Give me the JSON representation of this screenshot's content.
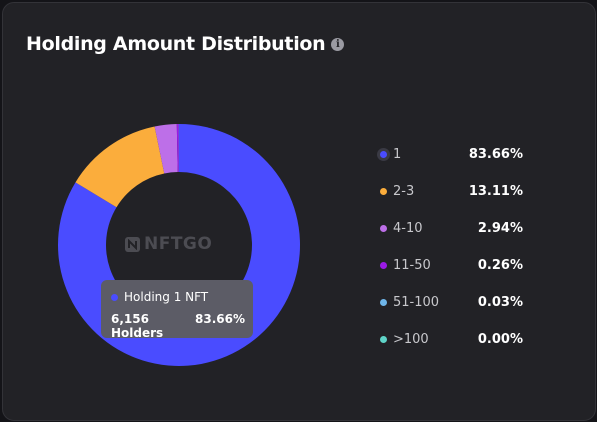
{
  "card": {
    "title": "Holding Amount Distribution",
    "info_icon": "info-icon",
    "info_glyph": "i"
  },
  "watermark": {
    "text": "NFTGO"
  },
  "tooltip": {
    "title": "Holding 1 NFT",
    "holders": "6,156 Holders",
    "percent": "83.66%",
    "color": "#4a4cff"
  },
  "chart_data": {
    "type": "pie",
    "title": "Holding Amount Distribution",
    "categories": [
      "1",
      "2-3",
      "4-10",
      "11-50",
      "51-100",
      ">100"
    ],
    "values": [
      83.66,
      13.11,
      2.94,
      0.26,
      0.03,
      0.0
    ],
    "labels": [
      "83.66%",
      "13.11%",
      "2.94%",
      "0.26%",
      "0.03%",
      "0.00%"
    ],
    "colors": [
      "#4a4cff",
      "#fbad3c",
      "#bd6fe8",
      "#9b1ae6",
      "#6fb6ea",
      "#5fd4c8"
    ],
    "legend": "right",
    "highlighted": "1"
  }
}
